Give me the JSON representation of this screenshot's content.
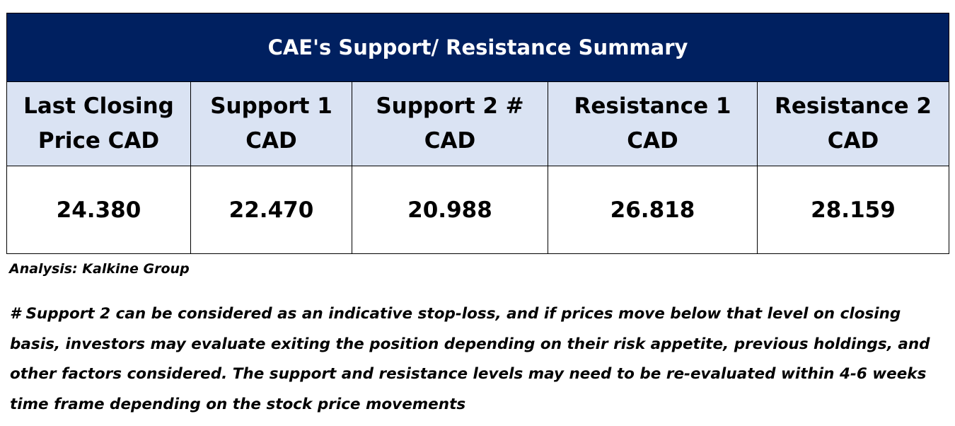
{
  "title": "CAE's Support/  Resistance Summary",
  "columns": [
    {
      "line1": "Last Closing",
      "line2": "Price CAD",
      "value": "24.380"
    },
    {
      "line1": "Support 1",
      "line2": "CAD",
      "value": "22.470"
    },
    {
      "line1": "Support 2 #",
      "line2": "CAD",
      "value": "20.988"
    },
    {
      "line1": "Resistance 1",
      "line2": "CAD",
      "value": "26.818"
    },
    {
      "line1": "Resistance 2",
      "line2": "CAD",
      "value": "28.159"
    }
  ],
  "source": "Analysis: Kalkine Group",
  "note": "# Support 2 can be considered as an indicative stop-loss, and if prices move below that level on closing basis, investors may evaluate exiting the position depending on their risk appetite, previous holdings, and other factors considered. The support and resistance levels may need to be re-evaluated within 4-6 weeks time frame depending on the stock price movements",
  "colors": {
    "title_bg": "#002060",
    "header_bg": "#dae3f3"
  }
}
